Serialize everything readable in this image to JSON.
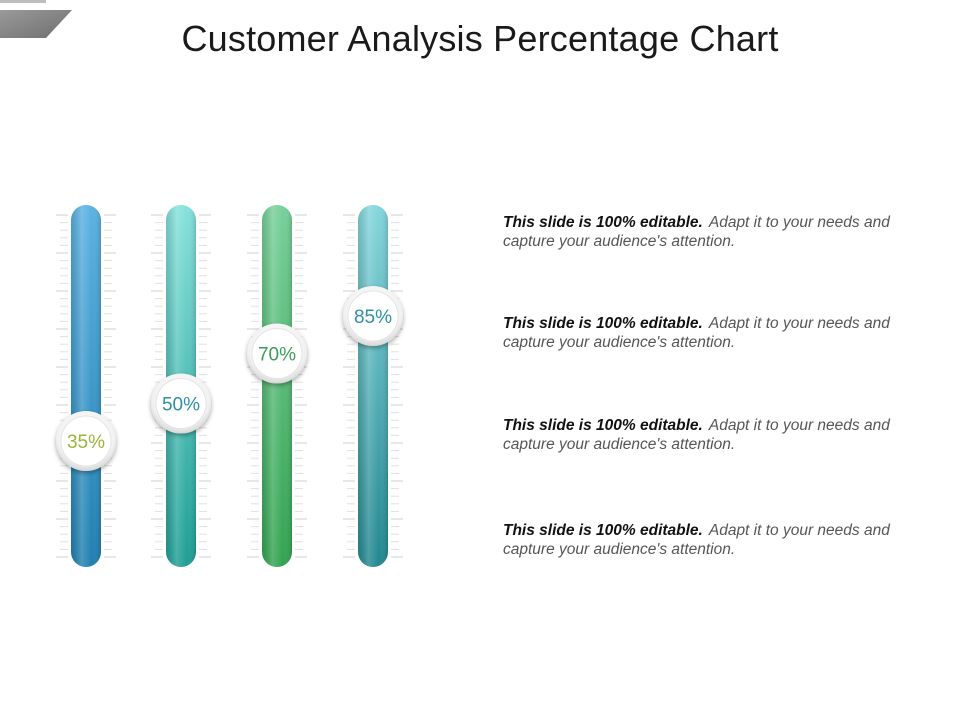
{
  "title": "Customer Analysis Percentage Chart",
  "chart_data": {
    "type": "bar",
    "orientation": "vertical-gauge",
    "series": [
      {
        "values": [
          35,
          50,
          70,
          85
        ]
      }
    ],
    "data_labels": [
      "35%",
      "50%",
      "70%",
      "85%"
    ],
    "ylim": [
      0,
      100
    ],
    "label_colors": [
      "#9bb43a",
      "#2f8fa6",
      "#3a9c57",
      "#2f8fa6"
    ],
    "bar_colors": [
      {
        "top": "#5bb2e2",
        "bottom": "#1f7fb0"
      },
      {
        "top": "#86e1dc",
        "bottom": "#1d9e93"
      },
      {
        "top": "#78d09a",
        "bottom": "#32a350"
      },
      {
        "top": "#84d6dc",
        "bottom": "#22878f"
      }
    ]
  },
  "descriptions": [
    {
      "lead": "This slide is 100% editable.",
      "body": "Adapt it to your needs and capture your audience's attention."
    },
    {
      "lead": "This slide is 100% editable.",
      "body": "Adapt it to your needs and capture your audience's attention."
    },
    {
      "lead": "This slide is 100% editable.",
      "body": "Adapt it to your needs and capture your audience's attention."
    },
    {
      "lead": "This slide is 100% editable.",
      "body": "Adapt it to your needs and capture your audience's attention."
    }
  ]
}
